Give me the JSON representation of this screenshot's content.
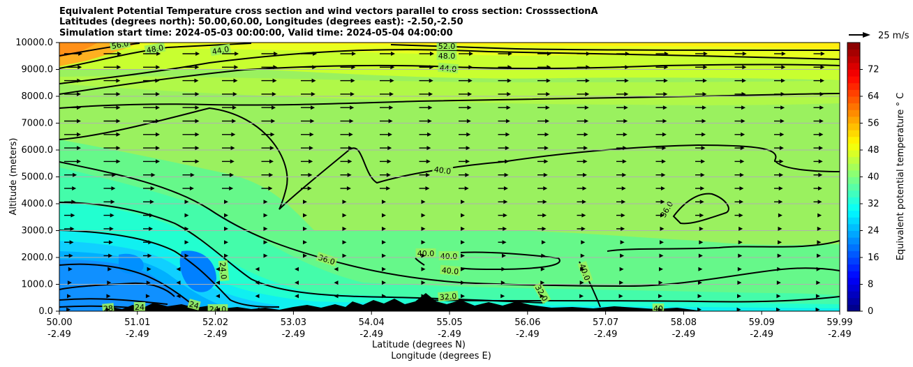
{
  "title": {
    "line1": "Equivalent Potential Temperature cross section and wind vectors parallel to cross section: CrosssectionA",
    "line2": "Latitudes (degrees north): 50.00,60.00, Longitudes (degrees east): -2.50,-2.50",
    "line3": "Simulation start time: 2024-05-03 00:00:00, Valid time: 2024-05-04 04:00:00"
  },
  "chart_data": {
    "type": "contourf",
    "title": "Equivalent Potential Temperature cross section and wind vectors parallel to cross section: CrosssectionA",
    "ylabel": "Altitude (meters)",
    "xlabel_lat": "Latitude (degrees N)",
    "xlabel_lon": "Longitude (degrees E)",
    "ylim": [
      0,
      10000
    ],
    "xlim": [
      50.0,
      59.99
    ],
    "y_ticks": [
      0,
      1000,
      2000,
      3000,
      4000,
      5000,
      6000,
      7000,
      8000,
      9000,
      10000
    ],
    "y_tick_labels": [
      "0.0",
      "1000.0",
      "2000.0",
      "3000.0",
      "4000.0",
      "5000.0",
      "6000.0",
      "7000.0",
      "8000.0",
      "9000.0",
      "10000.0"
    ],
    "x_ticks_lat": [
      "50.00",
      "51.01",
      "52.02",
      "53.03",
      "54.04",
      "55.05",
      "56.06",
      "57.07",
      "58.08",
      "59.09",
      "59.99"
    ],
    "x_ticks_lon": [
      "-2.49",
      "-2.49",
      "-2.49",
      "-2.49",
      "-2.49",
      "-2.49",
      "-2.49",
      "-2.49",
      "-2.49",
      "-2.49",
      "-2.49"
    ],
    "colorbar": {
      "label": "Equivalent potential temperature $^\\circ$C",
      "label_text": "Equivalent potential temperature ° C",
      "range": [
        0,
        80
      ],
      "step": 2,
      "ticks": [
        "0",
        "8",
        "16",
        "24",
        "32",
        "40",
        "48",
        "56",
        "64",
        "72"
      ]
    },
    "quiver_key": {
      "label": "25 m/s",
      "value": 25
    },
    "contour_labels": [
      "56.0",
      "48.0",
      "44.0",
      "52.0",
      "48.0",
      "44.0",
      "40.0",
      "36.0",
      "40.0",
      "40.0",
      "40.0",
      "36.0",
      "40.0",
      "24.0",
      "32.0",
      "32.0",
      "24",
      "24.0",
      "28",
      "24",
      "40"
    ]
  }
}
